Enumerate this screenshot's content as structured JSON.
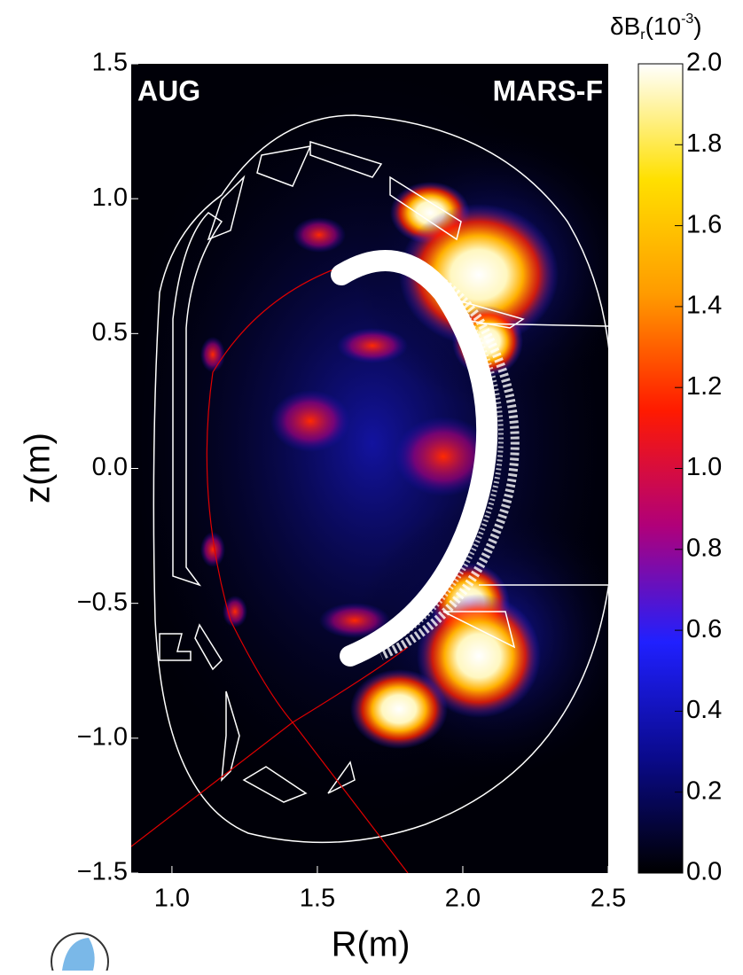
{
  "chart_data": {
    "type": "heatmap",
    "title_left": "AUG",
    "title_right": "MARS-F",
    "x_label": "R(m)",
    "y_label": "z(m)",
    "colorbar_label": [
      "δB",
      "r",
      "(10",
      "-3",
      ")"
    ],
    "xlim": [
      0.86,
      2.5
    ],
    "ylim": [
      -1.5,
      1.5
    ],
    "xticks": [
      {
        "value": 1.0,
        "label": "1.0"
      },
      {
        "value": 1.5,
        "label": "1.5"
      },
      {
        "value": 2.0,
        "label": "2.0"
      },
      {
        "value": 2.5,
        "label": "2.5"
      }
    ],
    "yticks": [
      {
        "value": 1.5,
        "label": "1.5"
      },
      {
        "value": 1.0,
        "label": "1.0"
      },
      {
        "value": 0.5,
        "label": "0.5"
      },
      {
        "value": 0.0,
        "label": "0.0"
      },
      {
        "value": -0.5,
        "label": "−0.5"
      },
      {
        "value": -1.0,
        "label": "−1.0"
      },
      {
        "value": -1.5,
        "label": "−1.5"
      }
    ],
    "clim": [
      0.0,
      2.0
    ],
    "cticks": [
      {
        "value": 0.0,
        "label": "0.0"
      },
      {
        "value": 0.2,
        "label": "0.2"
      },
      {
        "value": 0.4,
        "label": "0.4"
      },
      {
        "value": 0.6,
        "label": "0.6"
      },
      {
        "value": 0.8,
        "label": "0.8"
      },
      {
        "value": 1.0,
        "label": "1.0"
      },
      {
        "value": 1.2,
        "label": "1.2"
      },
      {
        "value": 1.4,
        "label": "1.4"
      },
      {
        "value": 1.6,
        "label": "1.6"
      },
      {
        "value": 1.8,
        "label": "1.8"
      },
      {
        "value": 2.0,
        "label": "2.0"
      }
    ],
    "colormap": [
      "#000000",
      "#0a0a8c",
      "#2020ff",
      "#b0007a",
      "#ff1a00",
      "#ff9a00",
      "#ffe000",
      "#ffffff"
    ]
  }
}
